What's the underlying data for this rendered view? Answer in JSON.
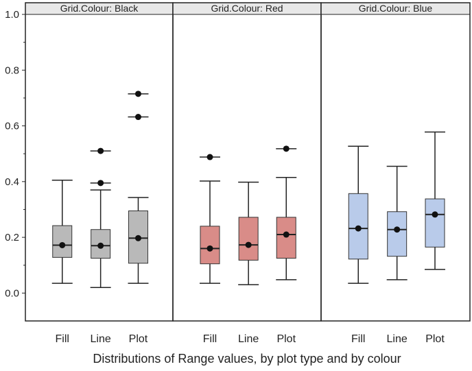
{
  "chart_data": {
    "type": "boxplot",
    "xlabel": "Distributions of Range values, by plot type and by colour",
    "ylabel": "",
    "ylim": [
      -0.1,
      1.0
    ],
    "yticks": [
      "0.0",
      "0.2",
      "0.4",
      "0.6",
      "0.8",
      "1.0"
    ],
    "categories": [
      "Fill",
      "Line",
      "Plot"
    ],
    "panels": [
      {
        "label": "Grid.Colour: Black",
        "fill": "#b9b9b9",
        "boxes": [
          {
            "category": "Fill",
            "whisker_low": 0.035,
            "q1": 0.128,
            "median": 0.172,
            "q3": 0.242,
            "whisker_high": 0.405,
            "mean": 0.172,
            "outliers": []
          },
          {
            "category": "Line",
            "whisker_low": 0.02,
            "q1": 0.125,
            "median": 0.17,
            "q3": 0.228,
            "whisker_high": 0.37,
            "mean": 0.17,
            "outliers": [
              0.395,
              0.51
            ]
          },
          {
            "category": "Plot",
            "whisker_low": 0.035,
            "q1": 0.107,
            "median": 0.197,
            "q3": 0.295,
            "whisker_high": 0.343,
            "mean": 0.197,
            "outliers": [
              0.632,
              0.715
            ]
          }
        ]
      },
      {
        "label": "Grid.Colour: Red",
        "fill": "#d98c88",
        "boxes": [
          {
            "category": "Fill",
            "whisker_low": 0.035,
            "q1": 0.105,
            "median": 0.16,
            "q3": 0.24,
            "whisker_high": 0.402,
            "mean": 0.16,
            "outliers": [
              0.488
            ]
          },
          {
            "category": "Line",
            "whisker_low": 0.03,
            "q1": 0.118,
            "median": 0.173,
            "q3": 0.272,
            "whisker_high": 0.398,
            "mean": 0.173,
            "outliers": []
          },
          {
            "category": "Plot",
            "whisker_low": 0.048,
            "q1": 0.125,
            "median": 0.21,
            "q3": 0.272,
            "whisker_high": 0.415,
            "mean": 0.21,
            "outliers": [
              0.518
            ]
          }
        ]
      },
      {
        "label": "Grid.Colour: Blue",
        "fill": "#b9cbea",
        "boxes": [
          {
            "category": "Fill",
            "whisker_low": 0.035,
            "q1": 0.122,
            "median": 0.232,
            "q3": 0.357,
            "whisker_high": 0.527,
            "mean": 0.232,
            "outliers": []
          },
          {
            "category": "Line",
            "whisker_low": 0.048,
            "q1": 0.132,
            "median": 0.228,
            "q3": 0.292,
            "whisker_high": 0.455,
            "mean": 0.228,
            "outliers": []
          },
          {
            "category": "Plot",
            "whisker_low": 0.085,
            "q1": 0.165,
            "median": 0.282,
            "q3": 0.338,
            "whisker_high": 0.578,
            "mean": 0.282,
            "outliers": []
          }
        ]
      }
    ]
  }
}
